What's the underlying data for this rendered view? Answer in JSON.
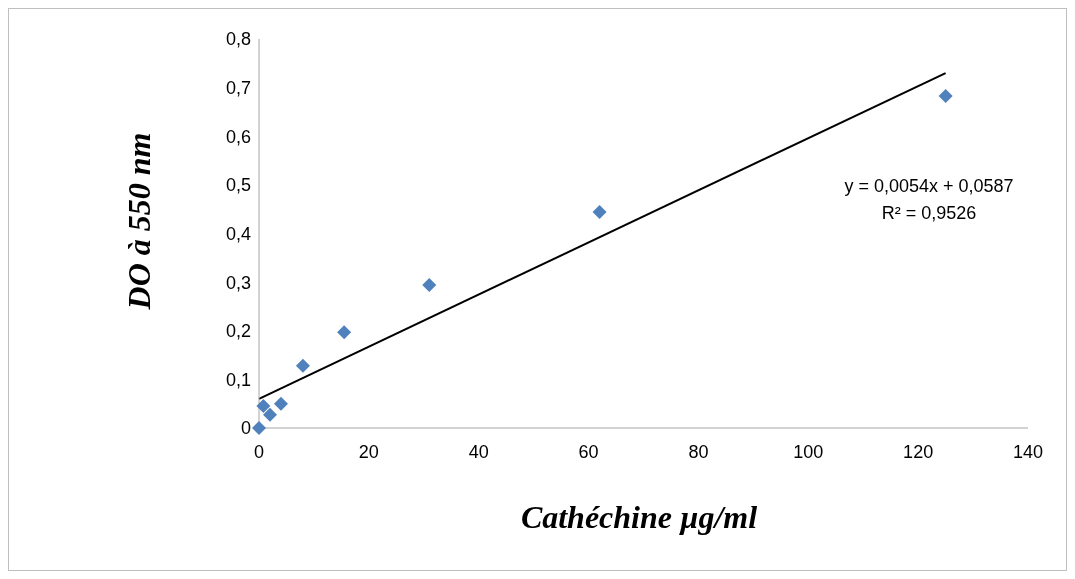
{
  "chart_data": {
    "type": "scatter",
    "xlabel": "Cathéchine µg/ml",
    "ylabel": "DO à 550 nm",
    "xlim": [
      0,
      140
    ],
    "xticks": [
      0,
      20,
      40,
      60,
      80,
      100,
      120,
      140
    ],
    "ylim": [
      0,
      0.8
    ],
    "yticks": [
      {
        "value": 0,
        "label": "0"
      },
      {
        "value": 0.1,
        "label": "0,1"
      },
      {
        "value": 0.2,
        "label": "0,2"
      },
      {
        "value": 0.3,
        "label": "0,3"
      },
      {
        "value": 0.4,
        "label": "0,4"
      },
      {
        "value": 0.5,
        "label": "0,5"
      },
      {
        "value": 0.6,
        "label": "0,6"
      },
      {
        "value": 0.7,
        "label": "0,7"
      },
      {
        "value": 0.8,
        "label": "0,8"
      }
    ],
    "marker": "diamond",
    "grid": false,
    "series": [
      {
        "color": "#4f81bd",
        "x": [
          0,
          0.8,
          2,
          4,
          8,
          15.5,
          31,
          62,
          125
        ],
        "values": [
          0,
          0.045,
          0.027,
          0.05,
          0.128,
          0.197,
          0.294,
          0.444,
          0.683
        ]
      },
      {
        "type": "line",
        "marker": "none",
        "color": "#000000",
        "x": [
          0,
          125
        ],
        "values": [
          0.06,
          0.73
        ]
      }
    ],
    "annotations": [
      "y = 0,0054x + 0,0587",
      "R² = 0,9526"
    ]
  }
}
